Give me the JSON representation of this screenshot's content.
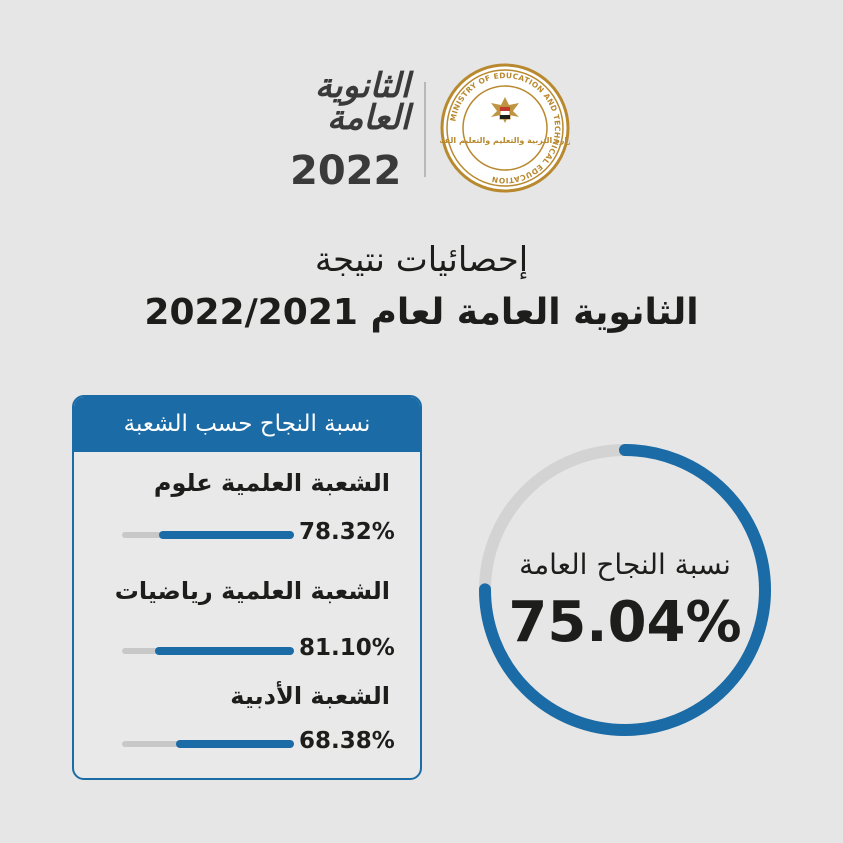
{
  "logo": {
    "text_line1": "الثانوية",
    "text_line2": "العامة",
    "year": "2022",
    "seal_text": "MINISTRY OF EDUCATION AND TECHNICAL EDUCATION",
    "seal_arabic": "وزارة التربية والتعليم والتعليم الفني"
  },
  "title": {
    "line1": "إحصائيات نتيجة",
    "line2": "الثانوية العامة لعام 2022/2021"
  },
  "panel": {
    "header": "نسبة النجاح حسب الشعبة",
    "rows": [
      {
        "label": "الشعبة العلمية علوم",
        "pct_text": "78.32%",
        "value": 0.7832
      },
      {
        "label": "الشعبة العلمية رياضيات",
        "pct_text": "81.10%",
        "value": 0.811
      },
      {
        "label": "الشعبة الأدبية",
        "pct_text": "68.38%",
        "value": 0.6838
      }
    ]
  },
  "overall": {
    "label": "نسبة النجاح العامة",
    "value_text": "75.04%",
    "value": 0.7504
  },
  "colors": {
    "accent": "#1a6ba6",
    "background": "#e6e6e6",
    "track": "#c8c8c8",
    "seal_gold": "#b8892f"
  }
}
